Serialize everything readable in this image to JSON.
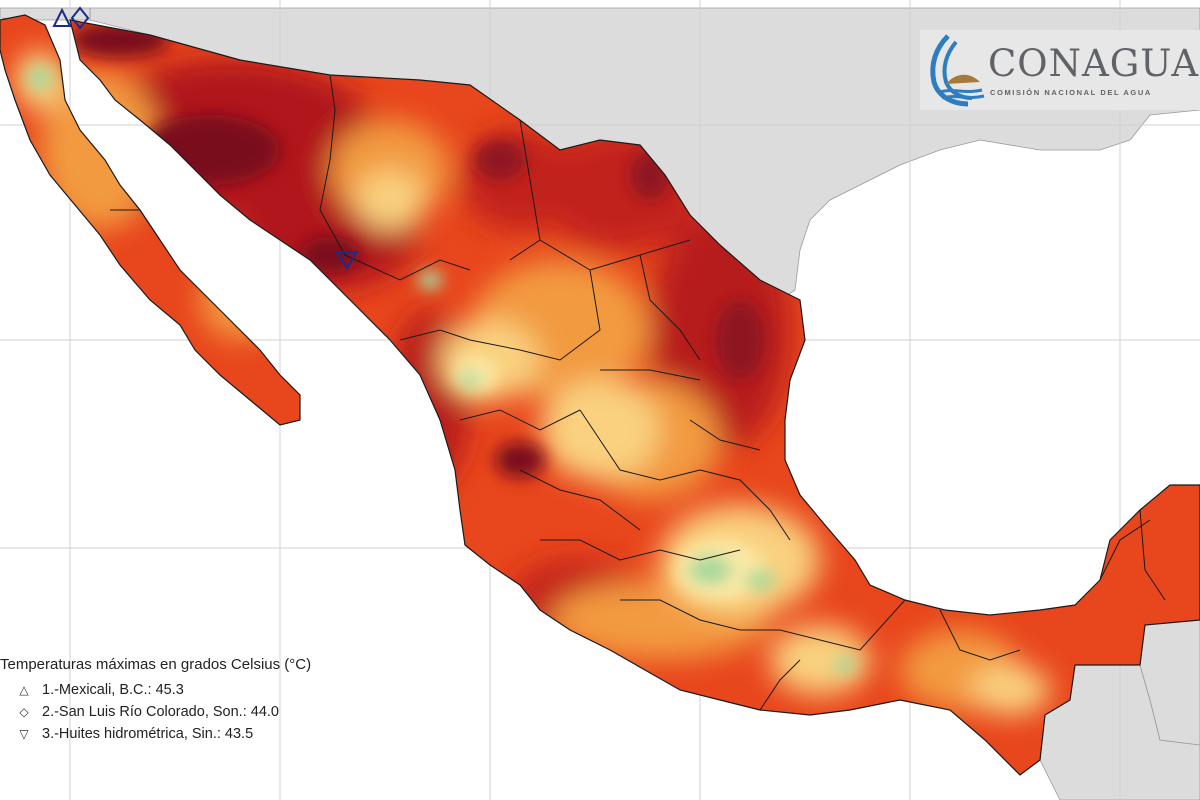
{
  "logo": {
    "name": "CONAGUA",
    "subtitle": "COMISIÓN NACIONAL DEL AGUA"
  },
  "legend": {
    "title": "Temperaturas máximas en grados Celsius (°C)",
    "items": [
      {
        "marker": "△",
        "marker_icon": "triangle-up-icon",
        "label": "1.-Mexicali, B.C.: 45.3",
        "value": 45.3
      },
      {
        "marker": "◇",
        "marker_icon": "diamond-icon",
        "label": "2.-San Luis Río Colorado, Son.: 44.0",
        "value": 44.0
      },
      {
        "marker": "▽",
        "marker_icon": "triangle-down-icon",
        "label": "3.-Huites hidrométrica, Sin.: 43.5",
        "value": 43.5
      }
    ]
  },
  "colors": {
    "ocean": "#ffffff",
    "neighbor_land": "#dcdcdc",
    "grid": "#d4d4d4",
    "border": "#1a1a1a",
    "temp_very_hot": "#7a0f1e",
    "temp_hot": "#c61f1f",
    "temp_warm": "#ea4a1e",
    "temp_mild": "#f39a3c",
    "temp_moderate": "#f8cf7a",
    "temp_cool": "#fbe9a8",
    "temp_coolest": "#9fd79a",
    "station_marker": "#1c2a8a"
  }
}
